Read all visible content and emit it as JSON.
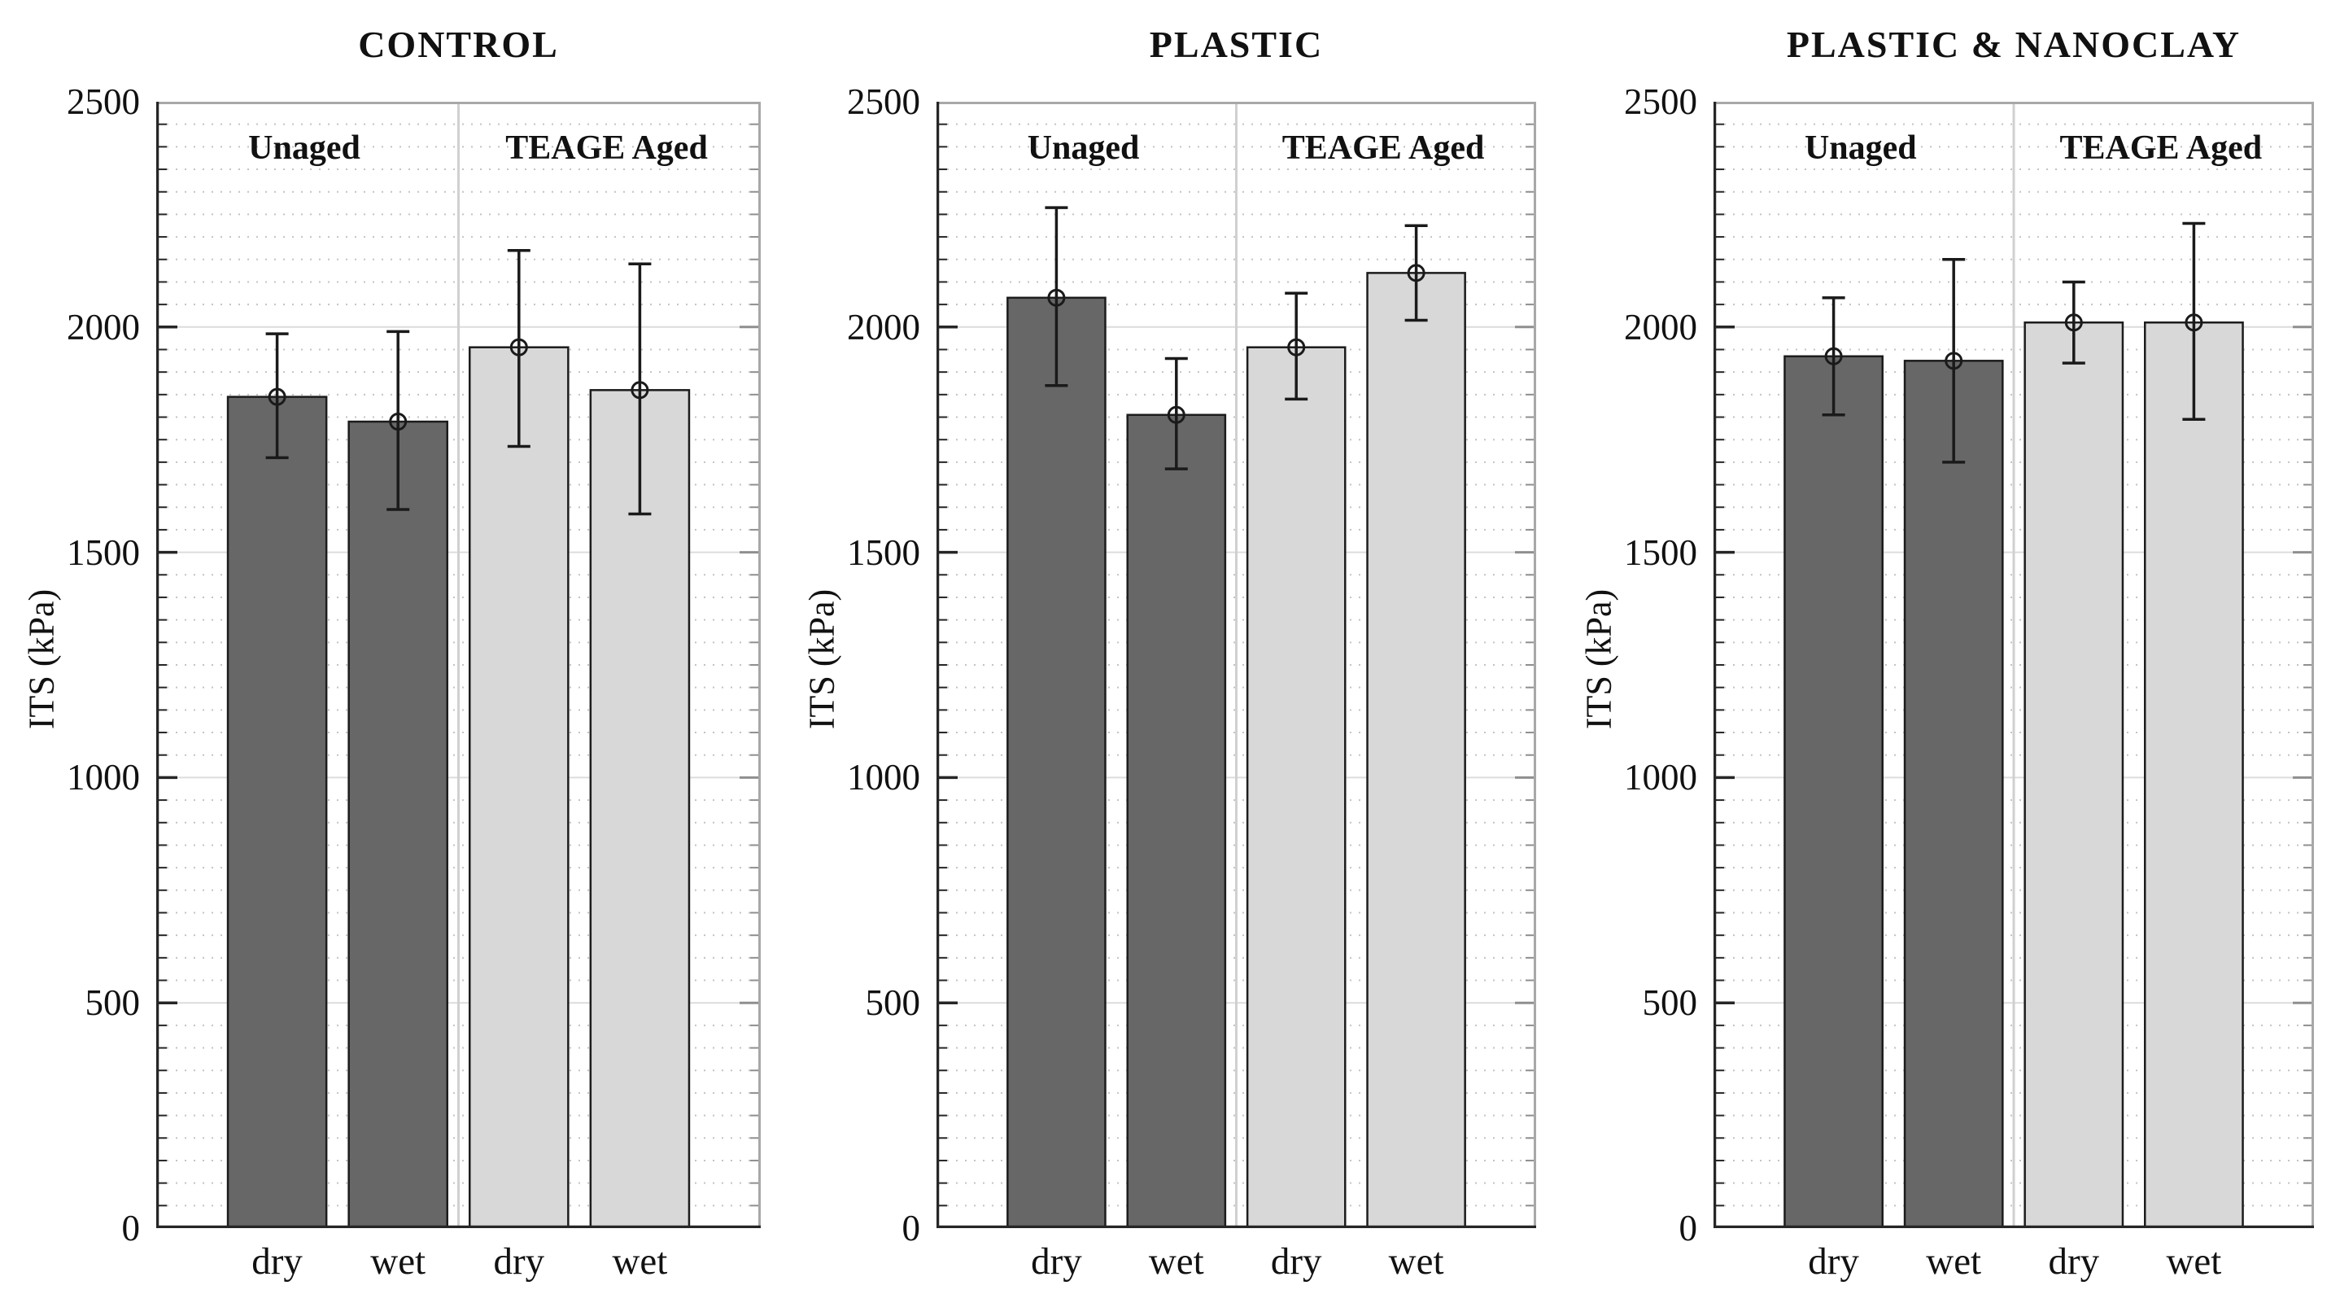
{
  "figure_title": "",
  "ylabel": "ITS (kPa)",
  "group_labels": [
    "Unaged",
    "TEAGE Aged"
  ],
  "axis": {
    "min": 0,
    "max": 2500,
    "major_step": 500,
    "minor_step": 50,
    "tick_labels": [
      "0",
      "500",
      "1000",
      "1500",
      "2000",
      "2500"
    ]
  },
  "colors": {
    "unaged_bar": "#676767",
    "aged_bar": "#d8d8d8",
    "bar_border": "#1c1c1c",
    "error_bar": "#1a1a1a",
    "grid_minor": "#c3c3c3",
    "grid_major": "#dcdcdc",
    "section_divider": "#d0d0d0",
    "axis_line": "#262626",
    "frame_light": "#a8a8a8",
    "text": "#111111"
  },
  "chart_data": [
    {
      "type": "bar",
      "title": "CONTROL",
      "categories": [
        "dry",
        "wet",
        "dry",
        "wet"
      ],
      "groups": [
        "Unaged",
        "TEAGE Aged"
      ],
      "xlabel": "",
      "ylabel": "ITS (kPa)",
      "ylim": [
        0,
        2500
      ],
      "series": [
        {
          "group": "Unaged",
          "condition": "dry",
          "value": 1845,
          "err_low": 1710,
          "err_high": 1985
        },
        {
          "group": "Unaged",
          "condition": "wet",
          "value": 1790,
          "err_low": 1595,
          "err_high": 1990
        },
        {
          "group": "TEAGE Aged",
          "condition": "dry",
          "value": 1955,
          "err_low": 1735,
          "err_high": 2170
        },
        {
          "group": "TEAGE Aged",
          "condition": "wet",
          "value": 1860,
          "err_low": 1585,
          "err_high": 2140
        }
      ]
    },
    {
      "type": "bar",
      "title": "PLASTIC",
      "categories": [
        "dry",
        "wet",
        "dry",
        "wet"
      ],
      "groups": [
        "Unaged",
        "TEAGE Aged"
      ],
      "xlabel": "",
      "ylabel": "ITS (kPa)",
      "ylim": [
        0,
        2500
      ],
      "series": [
        {
          "group": "Unaged",
          "condition": "dry",
          "value": 2065,
          "err_low": 1870,
          "err_high": 2265
        },
        {
          "group": "Unaged",
          "condition": "wet",
          "value": 1805,
          "err_low": 1685,
          "err_high": 1930
        },
        {
          "group": "TEAGE Aged",
          "condition": "dry",
          "value": 1955,
          "err_low": 1840,
          "err_high": 2075
        },
        {
          "group": "TEAGE Aged",
          "condition": "wet",
          "value": 2120,
          "err_low": 2015,
          "err_high": 2225
        }
      ]
    },
    {
      "type": "bar",
      "title": "PLASTIC & NANOCLAY",
      "categories": [
        "dry",
        "wet",
        "dry",
        "wet"
      ],
      "groups": [
        "Unaged",
        "TEAGE Aged"
      ],
      "xlabel": "",
      "ylabel": "ITS (kPa)",
      "ylim": [
        0,
        2500
      ],
      "series": [
        {
          "group": "Unaged",
          "condition": "dry",
          "value": 1935,
          "err_low": 1805,
          "err_high": 2065
        },
        {
          "group": "Unaged",
          "condition": "wet",
          "value": 1925,
          "err_low": 1700,
          "err_high": 2150
        },
        {
          "group": "TEAGE Aged",
          "condition": "dry",
          "value": 2010,
          "err_low": 1920,
          "err_high": 2100
        },
        {
          "group": "TEAGE Aged",
          "condition": "wet",
          "value": 2010,
          "err_low": 1795,
          "err_high": 2230
        }
      ]
    }
  ]
}
